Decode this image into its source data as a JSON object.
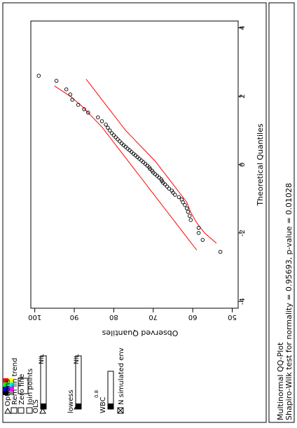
{
  "window": {
    "title": ""
  },
  "controls": {
    "options_label": "Options",
    "rem_lin_trend_label": "Rem lin trend",
    "zero_line_label": "Zero line",
    "join_points_label": "Join points",
    "ols_label": "OLS",
    "ols_value": "NIL",
    "lowess_label": "lowess",
    "lowess_value": "NIL",
    "wbc_label": "WBC",
    "wbc_exponent": "0.8",
    "n_sim_env_label": "N simulated env",
    "rem_lin_trend_checked": false,
    "zero_line_checked": false,
    "join_points_checked": false,
    "n_sim_env_checked": true,
    "color_swatches": [
      "#ff0000",
      "#ffff00",
      "#00ff00",
      "#00ffff",
      "#0000ff",
      "#ff00ff",
      "#000000",
      "#888888"
    ]
  },
  "status": {
    "title": "Multinormal QQ-Plot",
    "test": "Shapiro-Wilk test for normality = 0.95693, p-value = 0.01028"
  },
  "chart_data": {
    "type": "scatter",
    "title": "",
    "xlabel": "Theoretical Quantiles",
    "ylabel": "Observed Quantiles",
    "xlim": [
      -4.2,
      4.2
    ],
    "ylim": [
      48.5,
      101
    ],
    "x_ticks": [
      "-4",
      "-2",
      "0",
      "2",
      "4"
    ],
    "x_tick_values": [
      -4,
      -2,
      0,
      2,
      4
    ],
    "y_ticks": [
      "50",
      "60",
      "70",
      "80",
      "90",
      "100"
    ],
    "y_tick_values": [
      50,
      60,
      70,
      80,
      90,
      100
    ],
    "points": [
      {
        "x": -2.55,
        "y": 53.0
      },
      {
        "x": -2.2,
        "y": 57.5
      },
      {
        "x": -2.0,
        "y": 58.5
      },
      {
        "x": -1.85,
        "y": 58.5
      },
      {
        "x": -1.62,
        "y": 60.5
      },
      {
        "x": -1.5,
        "y": 60.8
      },
      {
        "x": -1.38,
        "y": 61.2
      },
      {
        "x": -1.28,
        "y": 61.5
      },
      {
        "x": -1.18,
        "y": 62.0
      },
      {
        "x": -1.1,
        "y": 62.5
      },
      {
        "x": -1.02,
        "y": 62.8
      },
      {
        "x": -0.95,
        "y": 63.5
      },
      {
        "x": -0.88,
        "y": 64.5
      },
      {
        "x": -0.82,
        "y": 65.0
      },
      {
        "x": -0.76,
        "y": 65.3
      },
      {
        "x": -0.7,
        "y": 66.0
      },
      {
        "x": -0.64,
        "y": 66.5
      },
      {
        "x": -0.58,
        "y": 67.0
      },
      {
        "x": -0.53,
        "y": 67.5
      },
      {
        "x": -0.48,
        "y": 67.8
      },
      {
        "x": -0.43,
        "y": 68.0
      },
      {
        "x": -0.38,
        "y": 68.5
      },
      {
        "x": -0.33,
        "y": 69.0
      },
      {
        "x": -0.28,
        "y": 69.5
      },
      {
        "x": -0.23,
        "y": 70.0
      },
      {
        "x": -0.18,
        "y": 70.3
      },
      {
        "x": -0.13,
        "y": 70.8
      },
      {
        "x": -0.08,
        "y": 71.0
      },
      {
        "x": -0.03,
        "y": 71.5
      },
      {
        "x": 0.02,
        "y": 72.0
      },
      {
        "x": 0.07,
        "y": 72.5
      },
      {
        "x": 0.12,
        "y": 73.0
      },
      {
        "x": 0.17,
        "y": 73.5
      },
      {
        "x": 0.22,
        "y": 74.0
      },
      {
        "x": 0.27,
        "y": 74.5
      },
      {
        "x": 0.32,
        "y": 75.0
      },
      {
        "x": 0.37,
        "y": 75.5
      },
      {
        "x": 0.42,
        "y": 76.0
      },
      {
        "x": 0.47,
        "y": 76.5
      },
      {
        "x": 0.52,
        "y": 77.0
      },
      {
        "x": 0.57,
        "y": 77.5
      },
      {
        "x": 0.62,
        "y": 78.0
      },
      {
        "x": 0.68,
        "y": 78.5
      },
      {
        "x": 0.74,
        "y": 79.0
      },
      {
        "x": 0.8,
        "y": 79.5
      },
      {
        "x": 0.86,
        "y": 80.0
      },
      {
        "x": 0.92,
        "y": 80.5
      },
      {
        "x": 1.0,
        "y": 81.0
      },
      {
        "x": 1.08,
        "y": 81.5
      },
      {
        "x": 1.17,
        "y": 82.0
      },
      {
        "x": 1.27,
        "y": 83.0
      },
      {
        "x": 1.38,
        "y": 84.0
      },
      {
        "x": 1.52,
        "y": 86.5
      },
      {
        "x": 1.62,
        "y": 87.5
      },
      {
        "x": 1.75,
        "y": 89.0
      },
      {
        "x": 1.9,
        "y": 90.5
      },
      {
        "x": 2.05,
        "y": 91.0
      },
      {
        "x": 2.2,
        "y": 92.0
      },
      {
        "x": 2.45,
        "y": 94.5
      },
      {
        "x": 2.6,
        "y": 99.0
      }
    ],
    "envelope_lower": [
      {
        "x": -2.3,
        "y": 54.0
      },
      {
        "x": -2.0,
        "y": 57.0
      },
      {
        "x": -1.7,
        "y": 59.0
      },
      {
        "x": -1.4,
        "y": 60.5
      },
      {
        "x": -1.1,
        "y": 61.5
      },
      {
        "x": -0.8,
        "y": 63.5
      },
      {
        "x": -0.5,
        "y": 65.5
      },
      {
        "x": -0.2,
        "y": 67.5
      },
      {
        "x": 0.1,
        "y": 69.5
      },
      {
        "x": 0.4,
        "y": 72.0
      },
      {
        "x": 0.7,
        "y": 74.5
      },
      {
        "x": 1.0,
        "y": 77.0
      },
      {
        "x": 1.3,
        "y": 79.0
      },
      {
        "x": 1.6,
        "y": 81.0
      },
      {
        "x": 1.9,
        "y": 83.0
      },
      {
        "x": 2.2,
        "y": 85.0
      },
      {
        "x": 2.5,
        "y": 87.0
      }
    ],
    "envelope_upper": [
      {
        "x": -2.5,
        "y": 59.0
      },
      {
        "x": -2.2,
        "y": 61.0
      },
      {
        "x": -1.9,
        "y": 63.0
      },
      {
        "x": -1.6,
        "y": 65.0
      },
      {
        "x": -1.3,
        "y": 67.0
      },
      {
        "x": -1.0,
        "y": 69.0
      },
      {
        "x": -0.7,
        "y": 71.0
      },
      {
        "x": -0.4,
        "y": 73.0
      },
      {
        "x": -0.1,
        "y": 75.0
      },
      {
        "x": 0.2,
        "y": 77.0
      },
      {
        "x": 0.5,
        "y": 79.0
      },
      {
        "x": 0.8,
        "y": 81.0
      },
      {
        "x": 1.1,
        "y": 83.0
      },
      {
        "x": 1.4,
        "y": 85.5
      },
      {
        "x": 1.7,
        "y": 88.0
      },
      {
        "x": 2.0,
        "y": 91.0
      },
      {
        "x": 2.3,
        "y": 95.0
      }
    ],
    "point_color": "#000000",
    "envelope_color": "#ff0000",
    "grid": false
  }
}
